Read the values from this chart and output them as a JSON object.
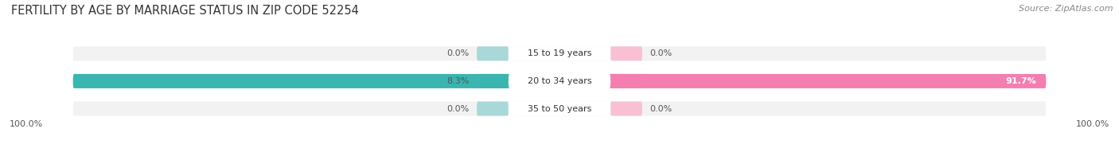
{
  "title": "FERTILITY BY AGE BY MARRIAGE STATUS IN ZIP CODE 52254",
  "source": "Source: ZipAtlas.com",
  "rows": [
    {
      "label": "15 to 19 years",
      "married": 0.0,
      "unmarried": 0.0,
      "married_label": "0.0%",
      "unmarried_label": "0.0%"
    },
    {
      "label": "20 to 34 years",
      "married": 8.3,
      "unmarried": 91.7,
      "married_label": "8.3%",
      "unmarried_label": "91.7%"
    },
    {
      "label": "35 to 50 years",
      "married": 0.0,
      "unmarried": 0.0,
      "married_label": "0.0%",
      "unmarried_label": "0.0%"
    }
  ],
  "married_color": "#3ab5b0",
  "unmarried_color": "#f47eb0",
  "bar_bg_color": "#e8e8e8",
  "bar_bg_color2": "#f2f2f2",
  "small_bar_married_color": "#a8d8d8",
  "small_bar_unmarried_color": "#f9c0d4",
  "left_label": "100.0%",
  "right_label": "100.0%",
  "title_fontsize": 10.5,
  "source_fontsize": 8,
  "bar_label_fontsize": 8,
  "value_label_fontsize": 8,
  "legend_fontsize": 8.5,
  "small_bar_width": 6.5
}
